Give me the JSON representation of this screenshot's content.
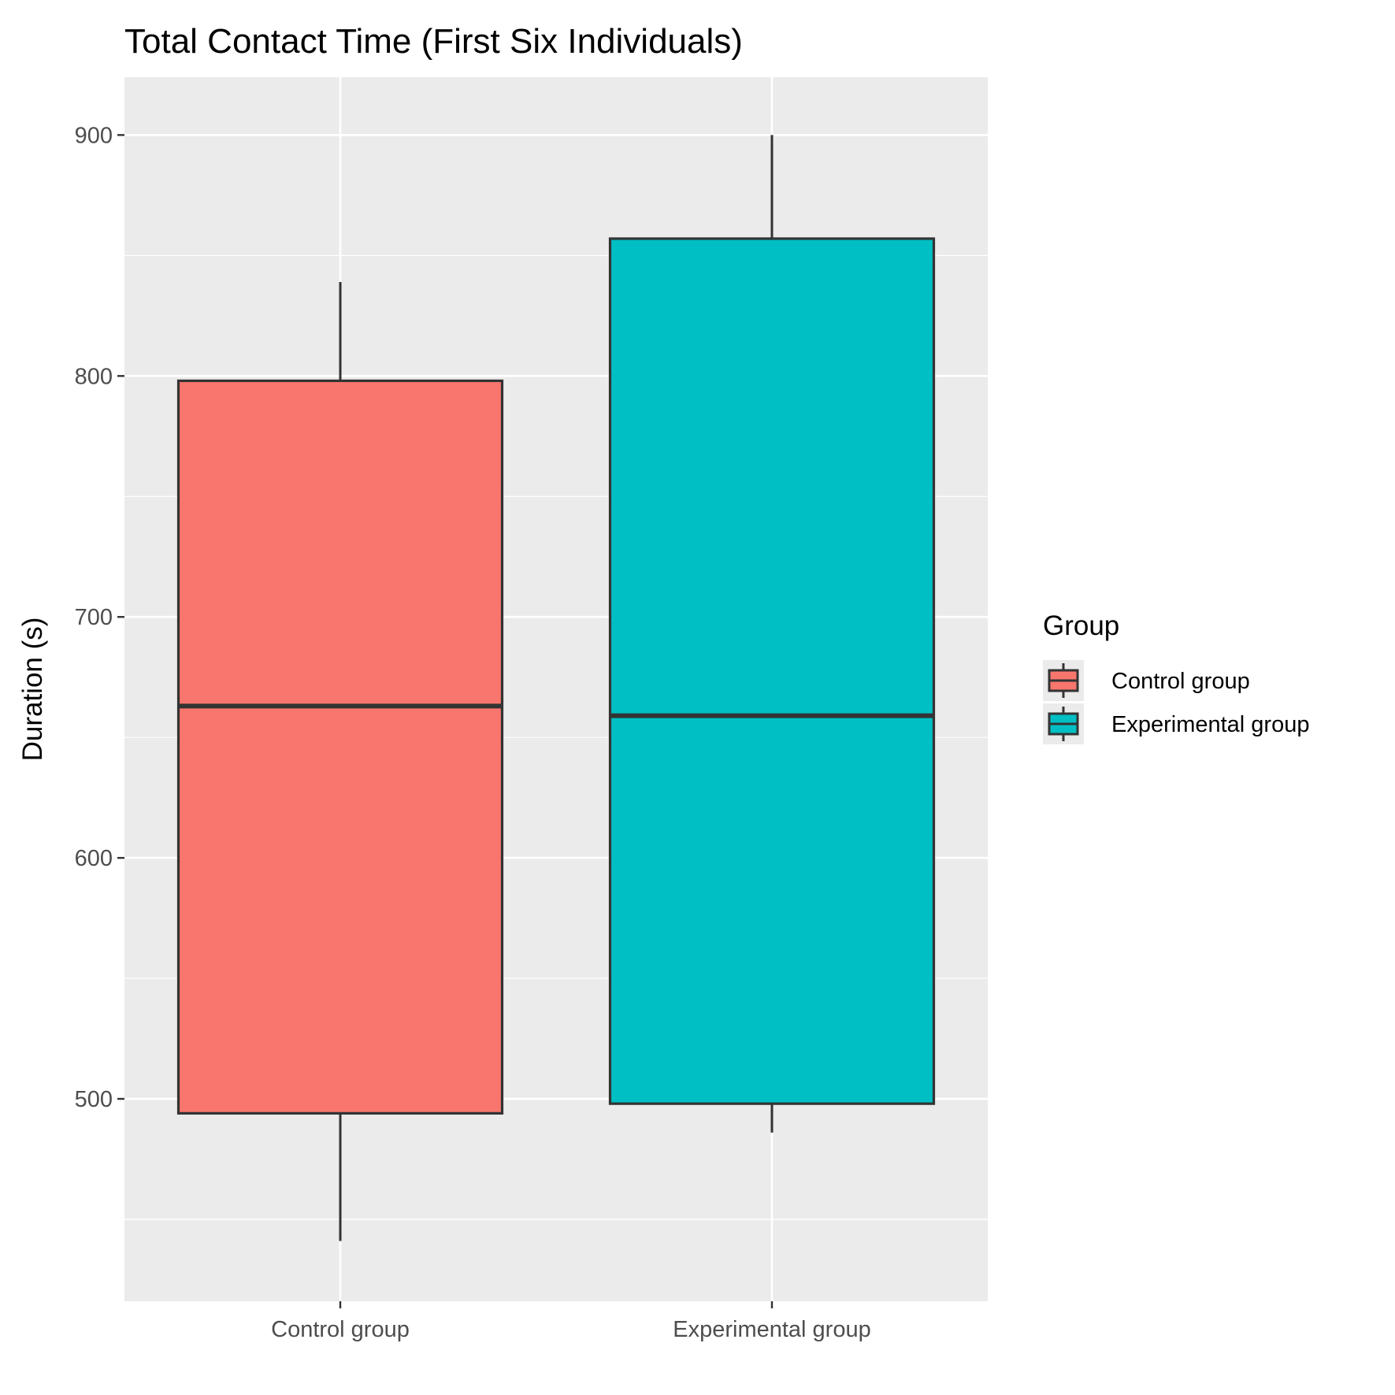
{
  "chart_data": {
    "type": "box",
    "title": "Total Contact Time (First Six Individuals)",
    "xlabel": "",
    "ylabel": "Duration (s)",
    "ylim": [
      416,
      924
    ],
    "yticks": [
      500,
      600,
      700,
      800,
      900
    ],
    "ytick_labels": [
      "500",
      "600",
      "700",
      "800",
      "900"
    ],
    "grid": true,
    "categories": [
      "Control group",
      "Experimental group"
    ],
    "boxes": [
      {
        "category": "Control group",
        "whisker_low": 441,
        "q1": 494,
        "median": 663,
        "q3": 798,
        "whisker_high": 839,
        "fill": "#F8766D"
      },
      {
        "category": "Experimental group",
        "whisker_low": 486,
        "q1": 498,
        "median": 659,
        "q3": 857,
        "whisker_high": 900,
        "fill": "#00BFC4"
      }
    ],
    "legend": {
      "title": "Group",
      "position": "right",
      "entries": [
        {
          "label": "Control group",
          "color": "#F8766D"
        },
        {
          "label": "Experimental group",
          "color": "#00BFC4"
        }
      ]
    },
    "colors": {
      "panel_background": "#EBEBEB",
      "grid": "#FFFFFF",
      "box_outline": "#333333",
      "axis_text": "#4D4D4D"
    }
  }
}
